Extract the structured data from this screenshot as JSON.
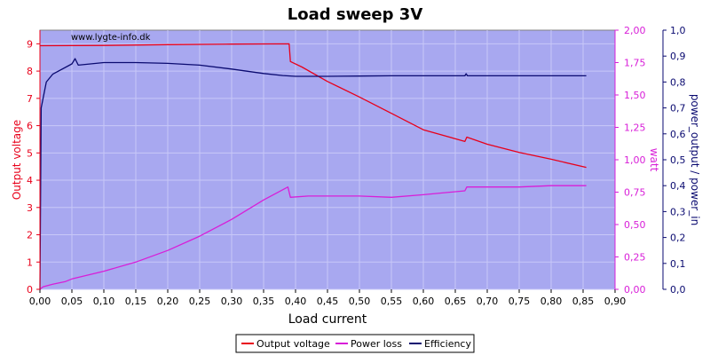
{
  "chart_data": {
    "type": "line",
    "title": "Load sweep 3V",
    "xlabel": "Load current",
    "ylabel_left": "Output voltage",
    "ylabel_right_inner": "watt",
    "ylabel_right_outer": "power_output / power_in",
    "watermark": "www.lygte-info.dk",
    "xlim": [
      0,
      0.9
    ],
    "ylim_left": [
      0,
      9.5
    ],
    "ylim_right_inner": [
      0,
      2.0
    ],
    "ylim_right_outer": [
      0,
      1.0
    ],
    "grid": true,
    "legend_position": "bottom",
    "x_ticks": [
      "0,00",
      "0,05",
      "0,10",
      "0,15",
      "0,20",
      "0,25",
      "0,30",
      "0,35",
      "0,40",
      "0,45",
      "0,50",
      "0,55",
      "0,60",
      "0,65",
      "0,70",
      "0,75",
      "0,80",
      "0,85",
      "0,90"
    ],
    "left_ticks": [
      "0",
      "1",
      "2",
      "3",
      "4",
      "5",
      "6",
      "7",
      "8",
      "9"
    ],
    "inner_right_ticks": [
      "0,00",
      "0,25",
      "0,50",
      "0,75",
      "1,00",
      "1,25",
      "1,50",
      "1,75",
      "2,00"
    ],
    "outer_right_ticks": [
      "0,0",
      "0,1",
      "0,2",
      "0,3",
      "0,4",
      "0,5",
      "0,6",
      "0,7",
      "0,8",
      "0,9",
      "1,0"
    ],
    "colors": {
      "plot_bg": "#a8a8f0",
      "grid": "#c8c8f8",
      "voltage": "#e8001a",
      "power_loss": "#d81ed8",
      "efficiency": "#0a0a70",
      "left_axis": "#e8001a",
      "inner_axis": "#d81ed8",
      "outer_axis": "#0a0a70"
    },
    "series": [
      {
        "name": "Output voltage",
        "axis": "left",
        "color": "#e8001a",
        "points": [
          [
            0.0,
            8.93
          ],
          [
            0.1,
            8.94
          ],
          [
            0.2,
            8.97
          ],
          [
            0.3,
            8.99
          ],
          [
            0.39,
            9.0
          ],
          [
            0.392,
            8.35
          ],
          [
            0.41,
            8.15
          ],
          [
            0.45,
            7.62
          ],
          [
            0.5,
            7.05
          ],
          [
            0.55,
            6.45
          ],
          [
            0.6,
            5.85
          ],
          [
            0.665,
            5.42
          ],
          [
            0.668,
            5.58
          ],
          [
            0.7,
            5.32
          ],
          [
            0.75,
            5.02
          ],
          [
            0.8,
            4.77
          ],
          [
            0.855,
            4.47
          ]
        ]
      },
      {
        "name": "Power loss",
        "axis": "inner",
        "color": "#d81ed8",
        "points": [
          [
            0.0,
            0.0
          ],
          [
            0.005,
            0.02
          ],
          [
            0.02,
            0.04
          ],
          [
            0.04,
            0.06
          ],
          [
            0.05,
            0.08
          ],
          [
            0.1,
            0.14
          ],
          [
            0.15,
            0.21
          ],
          [
            0.2,
            0.3
          ],
          [
            0.25,
            0.41
          ],
          [
            0.3,
            0.54
          ],
          [
            0.35,
            0.69
          ],
          [
            0.388,
            0.79
          ],
          [
            0.392,
            0.71
          ],
          [
            0.42,
            0.72
          ],
          [
            0.5,
            0.72
          ],
          [
            0.55,
            0.71
          ],
          [
            0.6,
            0.73
          ],
          [
            0.665,
            0.76
          ],
          [
            0.668,
            0.79
          ],
          [
            0.7,
            0.79
          ],
          [
            0.75,
            0.79
          ],
          [
            0.8,
            0.8
          ],
          [
            0.855,
            0.8
          ]
        ]
      },
      {
        "name": "Efficiency",
        "axis": "outer",
        "color": "#0a0a70",
        "points": [
          [
            0.0,
            0.0
          ],
          [
            0.002,
            0.7
          ],
          [
            0.01,
            0.8
          ],
          [
            0.02,
            0.83
          ],
          [
            0.05,
            0.87
          ],
          [
            0.055,
            0.89
          ],
          [
            0.06,
            0.865
          ],
          [
            0.1,
            0.875
          ],
          [
            0.15,
            0.875
          ],
          [
            0.2,
            0.872
          ],
          [
            0.25,
            0.865
          ],
          [
            0.3,
            0.85
          ],
          [
            0.35,
            0.833
          ],
          [
            0.38,
            0.825
          ],
          [
            0.4,
            0.822
          ],
          [
            0.45,
            0.822
          ],
          [
            0.5,
            0.823
          ],
          [
            0.55,
            0.824
          ],
          [
            0.6,
            0.824
          ],
          [
            0.665,
            0.824
          ],
          [
            0.667,
            0.832
          ],
          [
            0.669,
            0.824
          ],
          [
            0.7,
            0.824
          ],
          [
            0.8,
            0.824
          ],
          [
            0.855,
            0.824
          ]
        ]
      }
    ]
  }
}
